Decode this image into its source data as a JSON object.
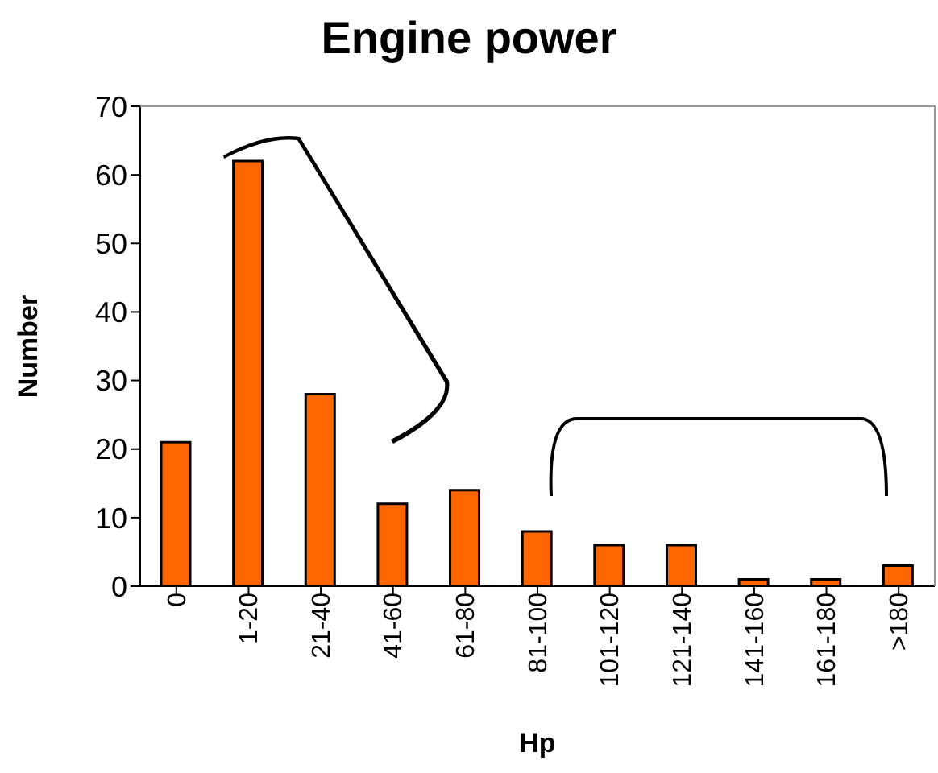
{
  "chart_data": {
    "type": "bar",
    "title": "Engine power",
    "xlabel": "Hp",
    "ylabel": "Number",
    "categories": [
      "0",
      "1-20",
      "21-40",
      "41-60",
      "61-80",
      "81-100",
      "101-120",
      "121-140",
      "141-160",
      "161-180",
      ">180"
    ],
    "values": [
      21,
      62,
      28,
      12,
      14,
      8,
      6,
      6,
      1,
      1,
      3
    ],
    "color": "#ff6600",
    "ylim": [
      0,
      70
    ],
    "yticks": [
      0,
      10,
      20,
      30,
      40,
      50,
      60,
      70
    ],
    "grid": false,
    "legend": false
  }
}
